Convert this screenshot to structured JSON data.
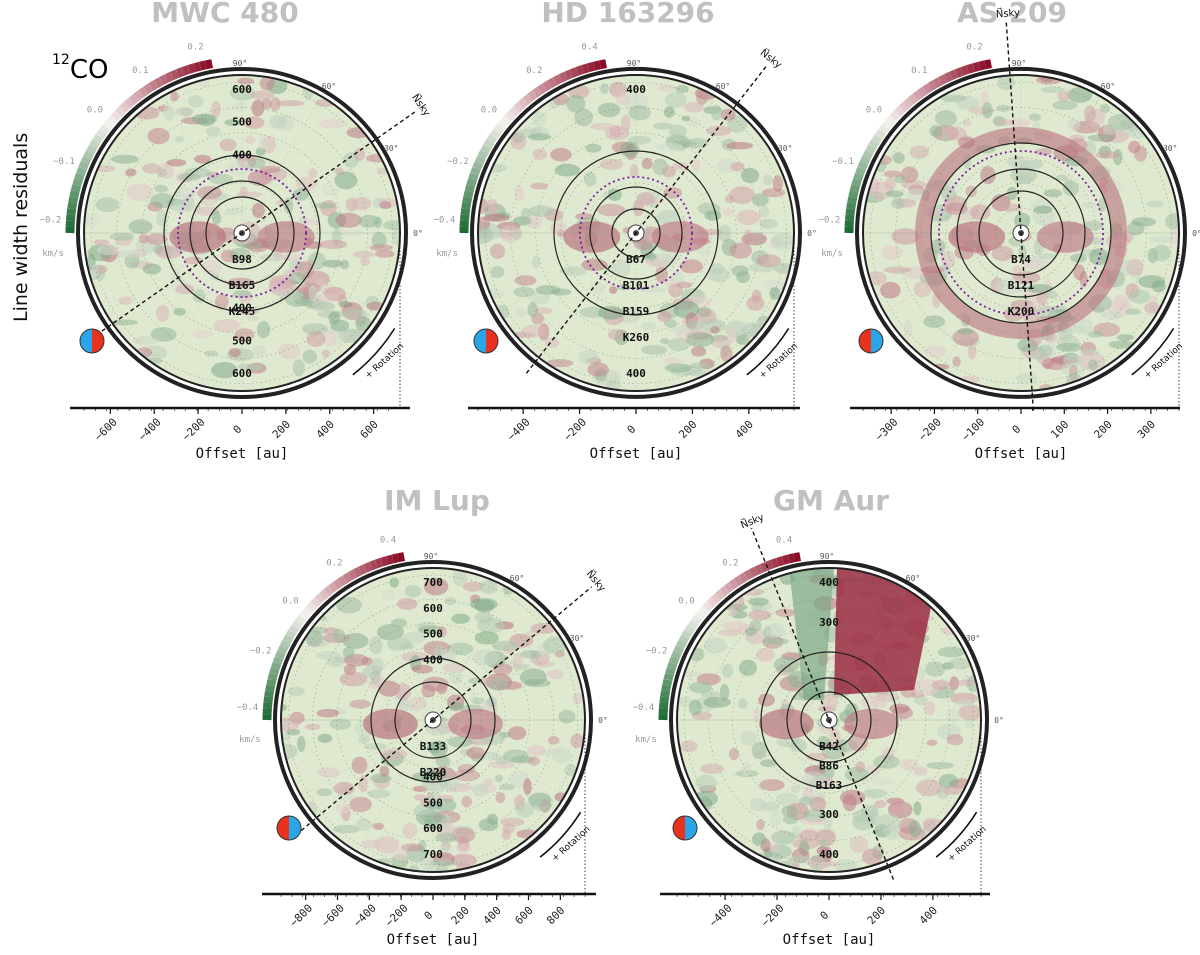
{
  "figure": {
    "side_label": "Line width residuals",
    "molecule_sup": "12",
    "molecule_main": "CO"
  },
  "colors": {
    "title": "#c0c0c0",
    "cmap_neg": "#1e6b33",
    "cmap_mid": "#f4f3ee",
    "cmap_pos": "#8b0a25",
    "purple_ring": "#7a1fa2",
    "marker_blue": "#2aa6e8",
    "marker_red": "#e8321e"
  },
  "chart_data": [
    {
      "type": "heatmap",
      "title": "MWC 480",
      "xlabel": "Offset [au]",
      "xticks": [
        "−600",
        "−400",
        "−200",
        "0",
        "200",
        "400",
        "600"
      ],
      "xlim": [
        -720,
        720
      ],
      "colorbar": {
        "ticks": [
          "0.2",
          "0.1",
          "0.0",
          "−0.1",
          "−0.2"
        ],
        "unit": "km/s"
      },
      "angle_labels": [
        "90°",
        "60°",
        "30°",
        "0°"
      ],
      "radius_labels_top": [
        "600",
        "500",
        "400"
      ],
      "radius_labels_bottom": [
        "400",
        "500",
        "600"
      ],
      "rings": [
        "B98",
        "B165",
        "K245"
      ],
      "north_label": "N⃗sky",
      "rotation_label": "+ Rotation",
      "marker": "blue-red"
    },
    {
      "type": "heatmap",
      "title": "HD 163296",
      "xlabel": "Offset [au]",
      "xticks": [
        "−400",
        "−200",
        "0",
        "200",
        "400"
      ],
      "xlim": [
        -560,
        560
      ],
      "colorbar": {
        "ticks": [
          "0.4",
          "0.2",
          "0.0",
          "−0.2",
          "−0.4"
        ],
        "unit": "km/s"
      },
      "angle_labels": [
        "90°",
        "60°",
        "30°",
        "0°"
      ],
      "radius_labels_top": [
        "400"
      ],
      "radius_labels_bottom": [
        "400"
      ],
      "rings": [
        "B67",
        "B101",
        "B159",
        "K260"
      ],
      "north_label": "N⃗sky",
      "rotation_label": "+ Rotation",
      "marker": "blue-red"
    },
    {
      "type": "heatmap",
      "title": "AS 209",
      "xlabel": "Offset [au]",
      "xticks": [
        "−300",
        "−200",
        "−100",
        "0",
        "100",
        "200",
        "300"
      ],
      "xlim": [
        -365,
        365
      ],
      "colorbar": {
        "ticks": [
          "0.2",
          "0.1",
          "0.0",
          "−0.1",
          "−0.2"
        ],
        "unit": "km/s"
      },
      "angle_labels": [
        "90°",
        "60°",
        "30°",
        "0°"
      ],
      "radius_labels_top": [],
      "radius_labels_bottom": [],
      "rings": [
        "B74",
        "B121",
        "K200"
      ],
      "north_label": "N⃗sky",
      "rotation_label": "+ Rotation",
      "marker": "red-blue"
    },
    {
      "type": "heatmap",
      "title": "IM Lup",
      "xlabel": "Offset [au]",
      "xticks": [
        "−800",
        "−600",
        "−400",
        "−200",
        "0",
        "200",
        "400",
        "600",
        "800"
      ],
      "xlim": [
        -955,
        955
      ],
      "colorbar": {
        "ticks": [
          "0.4",
          "0.2",
          "0.0",
          "−0.2",
          "−0.4"
        ],
        "unit": "km/s"
      },
      "angle_labels": [
        "90°",
        "60°",
        "30°",
        "0°"
      ],
      "radius_labels_top": [
        "700",
        "600",
        "500",
        "400"
      ],
      "radius_labels_bottom": [
        "400",
        "500",
        "600",
        "700"
      ],
      "rings": [
        "B133",
        "B220"
      ],
      "north_label": "N⃗sky",
      "rotation_label": "+ Rotation",
      "marker": "red-blue"
    },
    {
      "type": "heatmap",
      "title": "GM Aur",
      "xlabel": "Offset [au]",
      "xticks": [
        "−400",
        "−200",
        "0",
        "200",
        "400"
      ],
      "xlim": [
        -585,
        585
      ],
      "colorbar": {
        "ticks": [
          "0.4",
          "0.2",
          "0.0",
          "−0.2",
          "−0.4"
        ],
        "unit": "km/s"
      },
      "angle_labels": [
        "90°",
        "60°",
        "30°",
        "0°"
      ],
      "radius_labels_top": [
        "400",
        "300"
      ],
      "radius_labels_bottom": [
        "300",
        "400"
      ],
      "rings": [
        "B42",
        "B86",
        "B163"
      ],
      "north_label": "N⃗sky",
      "rotation_label": "+ Rotation",
      "marker": "red-blue"
    }
  ]
}
